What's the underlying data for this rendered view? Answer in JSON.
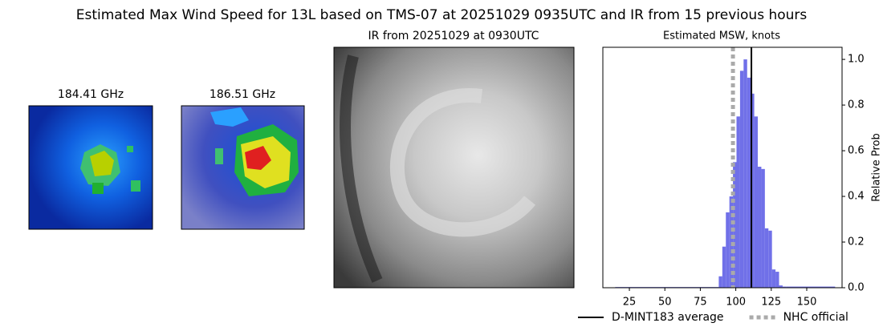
{
  "title": "Estimated Max Wind Speed for 13L based on TMS-07 at 20251029 0935UTC and IR from 15 previous hours",
  "panels": [
    {
      "title": "184.41 GHz"
    },
    {
      "title": "186.51 GHz"
    },
    {
      "title": "IR from 20251029 at 0930UTC"
    }
  ],
  "chart_data": {
    "type": "histogram",
    "title": "Estimated MSW, knots",
    "y_label": "Relative Prob",
    "bins": [
      15,
      88,
      90.5,
      93,
      95.5,
      98,
      100.5,
      103,
      105.5,
      108,
      110.5,
      113,
      115.5,
      118,
      120.5,
      123,
      125.5,
      128,
      130.5,
      133,
      135.5,
      170
    ],
    "values": [
      0.003,
      0.05,
      0.18,
      0.33,
      0.4,
      0.55,
      0.75,
      0.95,
      1.0,
      0.92,
      0.85,
      0.75,
      0.53,
      0.52,
      0.26,
      0.25,
      0.08,
      0.07,
      0.01,
      0.005,
      0.005
    ],
    "color": "#7070e8",
    "xlim": [
      6.3,
      174.9
    ],
    "ylim": [
      0,
      1.053
    ],
    "xticks": [
      25,
      50,
      75,
      100,
      125,
      150
    ],
    "yticks": [
      {
        "value": 0,
        "label": "0.0"
      },
      0.2,
      0.4,
      0.6,
      0.8,
      {
        "value": 1,
        "label": "1.0"
      }
    ],
    "y_axis_side": "right",
    "lines": [
      {
        "name": "D-MINT183 average",
        "value": 111,
        "color": "#000000",
        "style": "solid"
      },
      {
        "name": "NHC official",
        "value": 98,
        "color": "#aaaaaa",
        "style": "dotted"
      }
    ]
  }
}
